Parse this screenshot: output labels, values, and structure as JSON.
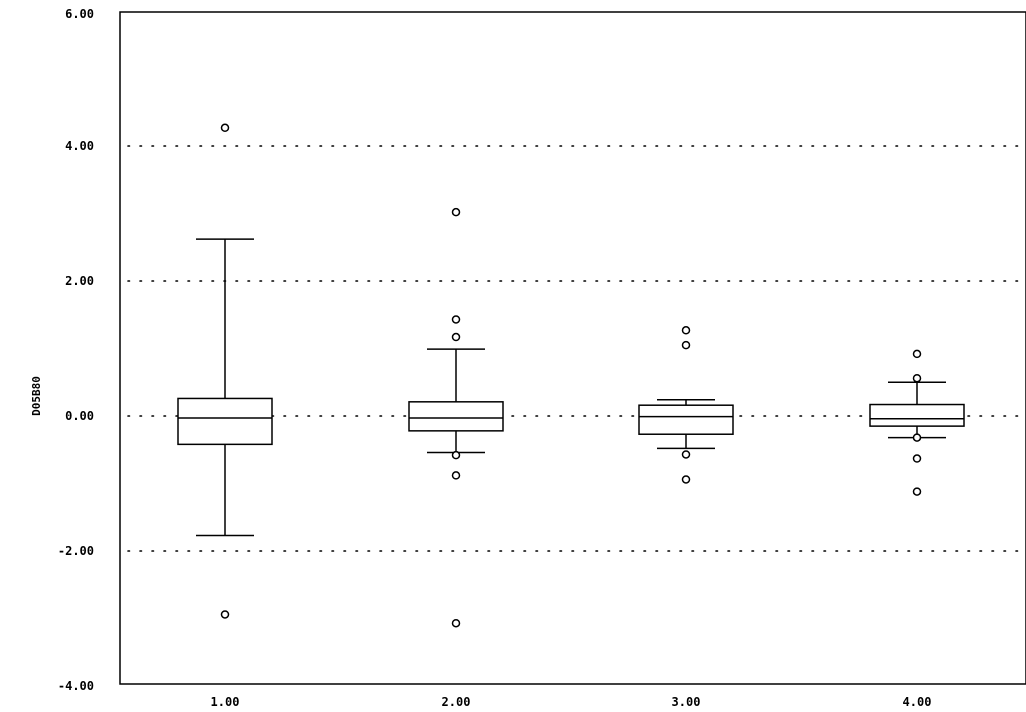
{
  "chart_data": {
    "type": "boxplot",
    "title": "",
    "xlabel": "",
    "ylabel": "D05B80",
    "ylim": [
      -4.4,
      6
    ],
    "y_ticks": [
      -4,
      -2,
      0,
      2,
      4,
      6
    ],
    "y_tick_labels": [
      "-4.00",
      "-2.00",
      "0.00",
      "2.00",
      "4.00",
      "6.00"
    ],
    "categories": [
      "1.00",
      "2.00",
      "3.00",
      "4.00"
    ],
    "grid": "dotted horizontal",
    "boxes": [
      {
        "category": "1.00",
        "whisker_low": -1.77,
        "q1": -0.42,
        "median": -0.03,
        "q3": 0.26,
        "whisker_high": 2.62,
        "outliers": [
          4.27,
          -2.94
        ]
      },
      {
        "category": "2.00",
        "whisker_low": -0.54,
        "q1": -0.22,
        "median": -0.03,
        "q3": 0.21,
        "whisker_high": 0.99,
        "outliers": [
          3.02,
          1.43,
          1.17,
          -0.58,
          -0.88,
          -3.07
        ]
      },
      {
        "category": "3.00",
        "whisker_low": -0.48,
        "q1": -0.27,
        "median": -0.01,
        "q3": 0.16,
        "whisker_high": 0.24,
        "outliers": [
          1.27,
          1.05,
          -0.57,
          -0.94
        ]
      },
      {
        "category": "4.00",
        "whisker_low": -0.32,
        "q1": -0.15,
        "median": -0.04,
        "q3": 0.17,
        "whisker_high": 0.5,
        "outliers": [
          0.92,
          0.56,
          -0.32,
          -0.63,
          -1.12
        ]
      }
    ]
  }
}
